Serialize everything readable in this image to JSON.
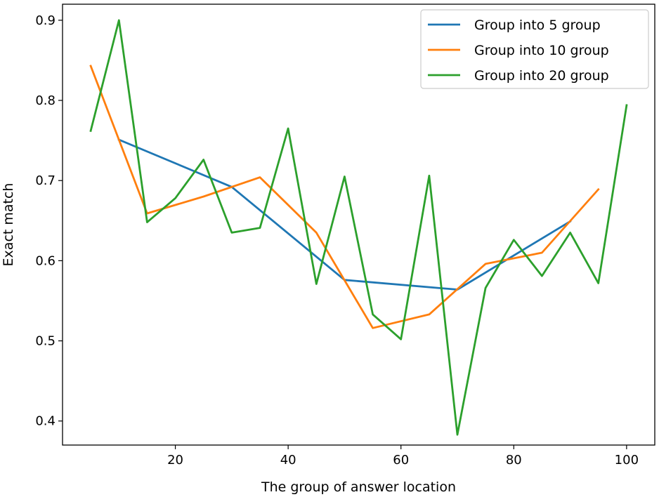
{
  "chart_data": {
    "type": "line",
    "title": "",
    "xlabel": "The group of answer location",
    "ylabel": "Exact match",
    "xlim": [
      0,
      105
    ],
    "ylim": [
      0.37,
      0.92
    ],
    "xticks": [
      20,
      40,
      60,
      80,
      100
    ],
    "yticks": [
      0.4,
      0.5,
      0.6,
      0.7,
      0.8,
      0.9
    ],
    "grid": false,
    "legend_position": "top-right",
    "series": [
      {
        "name": "Group into 5 group",
        "color": "#1f77b4",
        "x": [
          10,
          30,
          50,
          70,
          90
        ],
        "y": [
          0.751,
          0.692,
          0.576,
          0.564,
          0.649
        ]
      },
      {
        "name": "Group into 10 group",
        "color": "#ff7f0e",
        "x": [
          5,
          15,
          25,
          35,
          45,
          55,
          65,
          75,
          85,
          95
        ],
        "y": [
          0.843,
          0.659,
          0.68,
          0.704,
          0.635,
          0.516,
          0.533,
          0.596,
          0.61,
          0.689
        ]
      },
      {
        "name": "Group into 20 group",
        "color": "#2ca02c",
        "x": [
          5,
          10,
          15,
          20,
          25,
          30,
          35,
          40,
          45,
          50,
          55,
          60,
          65,
          70,
          75,
          80,
          85,
          90,
          95,
          100
        ],
        "y": [
          0.762,
          0.9,
          0.648,
          0.678,
          0.726,
          0.635,
          0.641,
          0.765,
          0.571,
          0.705,
          0.533,
          0.502,
          0.706,
          0.383,
          0.566,
          0.626,
          0.581,
          0.635,
          0.572,
          0.794
        ]
      }
    ]
  }
}
